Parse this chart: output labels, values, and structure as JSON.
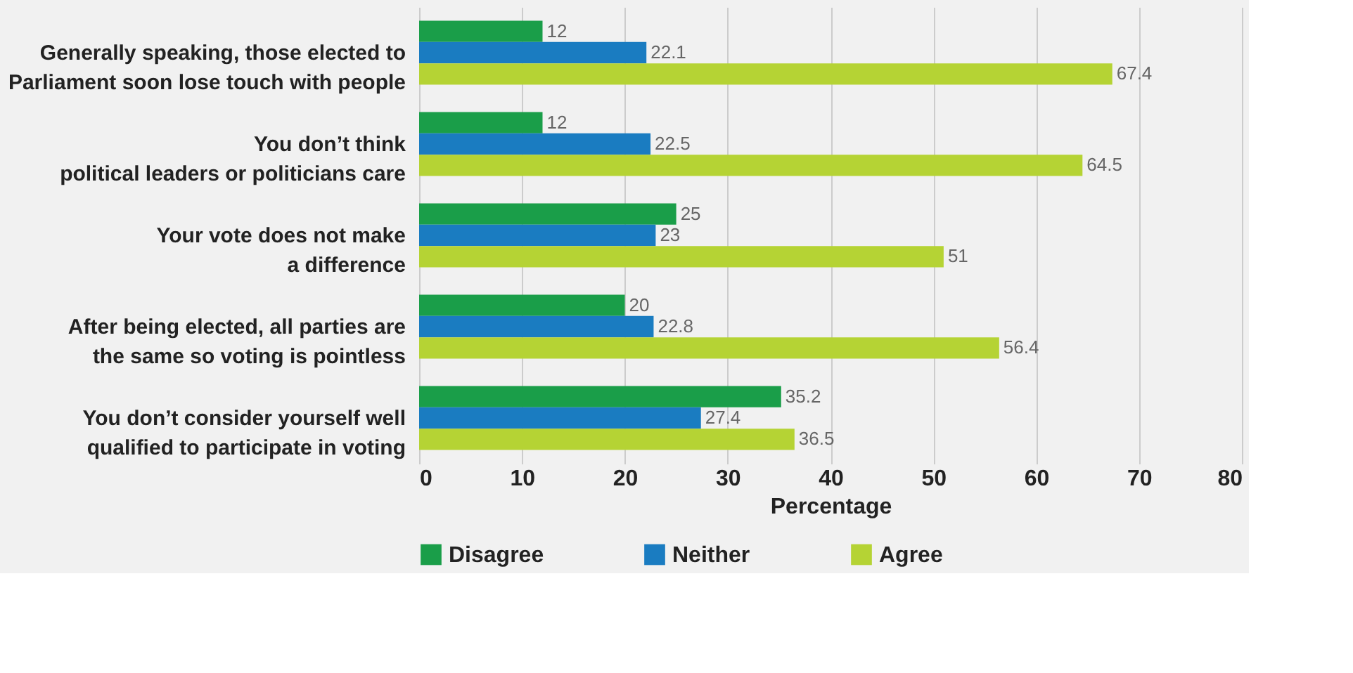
{
  "chart_data": {
    "type": "bar",
    "orientation": "horizontal",
    "xlabel": "Percentage",
    "categories": [
      "Generally speaking, those elected to\nParliament soon lose touch with people",
      "You don’t think\npolitical leaders or politicians care",
      "Your vote does not make\na difference",
      "After being elected, all parties are\nthe same so voting is pointless",
      "You don’t consider yourself well\nqualified to participate in voting"
    ],
    "series": [
      {
        "name": "Disagree",
        "color": "#1a9e49",
        "values": [
          12,
          12,
          25,
          20,
          35.2
        ]
      },
      {
        "name": "Neither",
        "color": "#1a7cc1",
        "values": [
          22.1,
          22.5,
          23,
          22.8,
          27.4
        ]
      },
      {
        "name": "Agree",
        "color": "#b5d334",
        "values": [
          67.4,
          64.5,
          51,
          56.4,
          36.5
        ]
      }
    ],
    "xlim": [
      0,
      80
    ],
    "xticks": [
      0,
      10,
      20,
      30,
      40,
      50,
      60,
      70,
      80
    ],
    "grid": "x",
    "legend": "bottom",
    "data_labels": true
  }
}
